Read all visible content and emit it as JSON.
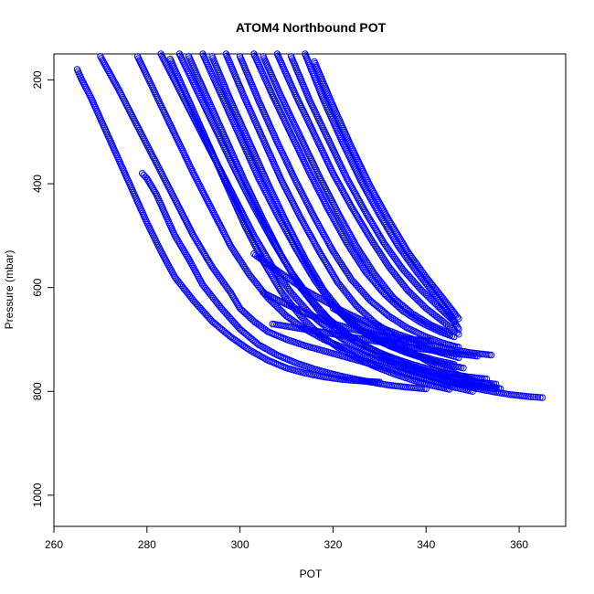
{
  "chart_data": {
    "type": "scatter",
    "title": "ATOM4 Northbound POT",
    "xlabel": "POT",
    "ylabel": "Pressure (mbar)",
    "xlim": [
      260,
      370
    ],
    "ylim": [
      1060,
      150
    ],
    "y_reversed": true,
    "xticks": [
      260,
      280,
      300,
      320,
      340,
      360
    ],
    "yticks": [
      200,
      400,
      600,
      800,
      1000
    ],
    "grid": false,
    "legend": "none",
    "marker": "open-circle",
    "color": "#0000ff",
    "series": [
      {
        "x": [
          265,
          266,
          268,
          270,
          272,
          274,
          276,
          278,
          280,
          283,
          286,
          290,
          294,
          298,
          302,
          306,
          310,
          314,
          318,
          322,
          326,
          330
        ],
        "y": [
          180,
          200,
          235,
          275,
          315,
          355,
          395,
          435,
          475,
          530,
          580,
          625,
          665,
          695,
          720,
          740,
          755,
          765,
          772,
          777,
          780,
          782
        ]
      },
      {
        "x": [
          279,
          280,
          282,
          284,
          286,
          289,
          292,
          296,
          300,
          304,
          308,
          312,
          316,
          320,
          324,
          328,
          332,
          336,
          340
        ],
        "y": [
          380,
          390,
          420,
          460,
          500,
          545,
          595,
          640,
          680,
          710,
          730,
          745,
          757,
          767,
          775,
          782,
          788,
          792,
          795
        ]
      },
      {
        "x": [
          270,
          274,
          278,
          282,
          286,
          290,
          294,
          298,
          300,
          303,
          306,
          310,
          314,
          318,
          322,
          326,
          330,
          334,
          338,
          342,
          346,
          350
        ],
        "y": [
          155,
          220,
          290,
          360,
          430,
          500,
          560,
          610,
          640,
          665,
          685,
          700,
          712,
          722,
          732,
          742,
          752,
          762,
          772,
          782,
          792,
          800
        ]
      },
      {
        "x": [
          278,
          282,
          286,
          290,
          294,
          298,
          302,
          306,
          310,
          314,
          318,
          322,
          326,
          330,
          334,
          338,
          342,
          346,
          350,
          354,
          358,
          362,
          365
        ],
        "y": [
          155,
          230,
          305,
          380,
          450,
          520,
          575,
          620,
          655,
          680,
          700,
          715,
          728,
          740,
          752,
          764,
          775,
          785,
          793,
          800,
          806,
          810,
          812
        ]
      },
      {
        "x": [
          283,
          287,
          291,
          295,
          299,
          303,
          307,
          311,
          315,
          319,
          323,
          327,
          331,
          335,
          339,
          343,
          347,
          351,
          355
        ],
        "y": [
          150,
          220,
          290,
          360,
          430,
          500,
          560,
          610,
          650,
          680,
          705,
          722,
          738,
          752,
          765,
          775,
          783,
          790,
          795
        ]
      },
      {
        "x": [
          285,
          289,
          293,
          297,
          301,
          305,
          309,
          313,
          317,
          321,
          325,
          329,
          333,
          337,
          341,
          345
        ],
        "y": [
          160,
          240,
          320,
          400,
          480,
          550,
          610,
          655,
          690,
          715,
          735,
          752,
          766,
          778,
          788,
          796
        ]
      },
      {
        "x": [
          287,
          291,
          295,
          299,
          303,
          307,
          311,
          315,
          319,
          323,
          327,
          331,
          335,
          339,
          343,
          347,
          351,
          355
        ],
        "y": [
          150,
          225,
          300,
          375,
          445,
          510,
          570,
          620,
          660,
          690,
          712,
          730,
          745,
          758,
          768,
          776,
          782,
          786
        ]
      },
      {
        "x": [
          289,
          293,
          297,
          301,
          305,
          309,
          313,
          317,
          321,
          325,
          329,
          333,
          337,
          341,
          345,
          349,
          353
        ],
        "y": [
          155,
          235,
          315,
          395,
          470,
          540,
          600,
          645,
          680,
          705,
          722,
          736,
          748,
          758,
          766,
          772,
          776
        ]
      },
      {
        "x": [
          292,
          296,
          300,
          304,
          308,
          312,
          316,
          320,
          324,
          328,
          332,
          336,
          340,
          344,
          348
        ],
        "y": [
          150,
          230,
          310,
          390,
          460,
          525,
          585,
          635,
          670,
          695,
          712,
          726,
          738,
          748,
          755
        ]
      },
      {
        "x": [
          294,
          298,
          302,
          306,
          310,
          314,
          318,
          322,
          326,
          330,
          334,
          338,
          342,
          346
        ],
        "y": [
          155,
          240,
          320,
          400,
          475,
          545,
          605,
          650,
          682,
          702,
          718,
          730,
          740,
          748
        ]
      },
      {
        "x": [
          297,
          301,
          305,
          309,
          313,
          317,
          321,
          325,
          329,
          333,
          337,
          341,
          345,
          347
        ],
        "y": [
          150,
          235,
          315,
          395,
          465,
          530,
          590,
          635,
          668,
          692,
          708,
          720,
          730,
          735
        ]
      },
      {
        "x": [
          300,
          304,
          308,
          312,
          316,
          320,
          324,
          328,
          332,
          336,
          340,
          344,
          347
        ],
        "y": [
          155,
          240,
          320,
          395,
          465,
          530,
          585,
          625,
          655,
          678,
          695,
          708,
          715
        ]
      },
      {
        "x": [
          303,
          307,
          311,
          315,
          319,
          323,
          327,
          331,
          335,
          339,
          343,
          346
        ],
        "y": [
          150,
          230,
          305,
          380,
          450,
          515,
          570,
          612,
          645,
          668,
          685,
          695
        ]
      },
      {
        "x": [
          305,
          309,
          313,
          317,
          321,
          325,
          329,
          333,
          337,
          341,
          345
        ],
        "y": [
          155,
          235,
          310,
          385,
          455,
          520,
          575,
          620,
          650,
          672,
          688
        ]
      },
      {
        "x": [
          308,
          312,
          316,
          320,
          324,
          328,
          332,
          336,
          340,
          344,
          347
        ],
        "y": [
          150,
          230,
          305,
          380,
          445,
          505,
          560,
          605,
          640,
          668,
          690
        ]
      },
      {
        "x": [
          311,
          315,
          319,
          323,
          327,
          331,
          335,
          339,
          343,
          346
        ],
        "y": [
          155,
          240,
          315,
          390,
          455,
          515,
          565,
          605,
          640,
          665
        ]
      },
      {
        "x": [
          314,
          318,
          322,
          326,
          330,
          334,
          338,
          342,
          345,
          347
        ],
        "y": [
          150,
          240,
          320,
          395,
          460,
          520,
          570,
          615,
          650,
          680
        ]
      },
      {
        "x": [
          316,
          320,
          324,
          328,
          332,
          336,
          340,
          344,
          347
        ],
        "y": [
          165,
          250,
          330,
          405,
          470,
          530,
          580,
          625,
          660
        ]
      },
      {
        "x": [
          303,
          306,
          310,
          314,
          318,
          322,
          326,
          330,
          334,
          338,
          342,
          346,
          350,
          354
        ],
        "y": [
          535,
          555,
          580,
          605,
          625,
          645,
          662,
          676,
          690,
          702,
          712,
          720,
          726,
          730
        ]
      },
      {
        "x": [
          305,
          309,
          313,
          317,
          321,
          325,
          329,
          333,
          337,
          341
        ],
        "y": [
          610,
          628,
          645,
          660,
          672,
          682,
          690,
          696,
          700,
          703
        ]
      },
      {
        "x": [
          307,
          311,
          315,
          319,
          323,
          327,
          331,
          335,
          339,
          343,
          347,
          351
        ],
        "y": [
          670,
          676,
          682,
          688,
          694,
          700,
          706,
          712,
          718,
          723,
          728,
          732
        ]
      },
      {
        "x": [
          320,
          324,
          328,
          332,
          336,
          340,
          344,
          348,
          352,
          356
        ],
        "y": [
          640,
          660,
          680,
          700,
          720,
          740,
          758,
          772,
          785,
          795
        ]
      }
    ]
  }
}
